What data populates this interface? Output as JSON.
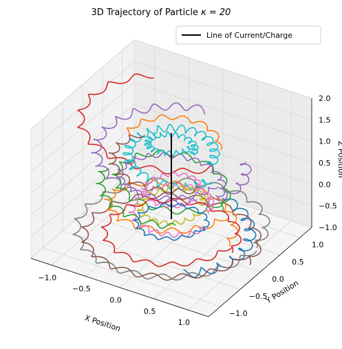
{
  "chart_data": {
    "type": "line",
    "projection": "3d",
    "title_prefix": "3D Trajectory of Particle ",
    "title_kappa": "κ = 20",
    "xlabel": "X Position",
    "ylabel": "Y Position",
    "zlabel": "Z Position",
    "xlim": [
      -1.3,
      1.3
    ],
    "ylim": [
      -1.3,
      1.3
    ],
    "zlim": [
      -1.0,
      2.0
    ],
    "xticks": [
      "−1.0",
      "−0.5",
      "0.0",
      "0.5",
      "1.0"
    ],
    "yticks": [
      "−1.0",
      "−0.5",
      "0.0",
      "0.5",
      "1.0"
    ],
    "zticks": [
      "−1.0",
      "−0.5",
      "0.0",
      "0.5",
      "1.0",
      "1.5",
      "2.0"
    ],
    "grid": true,
    "legend_position": "top-right",
    "legend": [
      {
        "name": "Line of Current/Charge",
        "color": "#000000"
      }
    ],
    "current_line": {
      "x": 0,
      "y": 0,
      "z": [
        -0.45,
        1.55
      ],
      "color": "#000000"
    },
    "trajectories": [
      {
        "color": "#d62728",
        "r": 1.15,
        "zc": 1.7,
        "amp": 0.25,
        "wob": 0.05,
        "freq": 18,
        "start": 2.3,
        "span": 3.4
      },
      {
        "color": "#9467bd",
        "r": 0.95,
        "zc": 1.0,
        "amp": 0.6,
        "wob": 0.06,
        "freq": 22,
        "start": 1.6,
        "span": 5.5
      },
      {
        "color": "#1f77b4",
        "r": 1.0,
        "zc": -0.55,
        "amp": 0.45,
        "wob": 0.07,
        "freq": 26,
        "start": 5.4,
        "span": 2.3
      },
      {
        "color": "#7f7f7f",
        "r": 1.2,
        "zc": -0.5,
        "amp": 0.5,
        "wob": 0.05,
        "freq": 20,
        "start": 0.0,
        "span": 6.28
      },
      {
        "color": "#8c564b",
        "r": 1.1,
        "zc": -0.8,
        "amp": 0.3,
        "wob": 0.05,
        "freq": 18,
        "start": 0.0,
        "span": 6.28
      },
      {
        "color": "#ff7f0e",
        "r": 0.8,
        "zc": -0.3,
        "amp": 0.7,
        "wob": 0.05,
        "freq": 16,
        "start": 0.0,
        "span": 6.28
      },
      {
        "color": "#2ca02c",
        "r": 0.7,
        "zc": 0.2,
        "amp": 0.6,
        "wob": 0.05,
        "freq": 14,
        "start": 0.0,
        "span": 6.28
      },
      {
        "color": "#17becf",
        "r": 0.55,
        "zc": 0.9,
        "amp": 0.5,
        "wob": 0.06,
        "freq": 24,
        "start": 0.0,
        "span": 6.28
      },
      {
        "color": "#e377c2",
        "r": 0.5,
        "zc": -0.2,
        "amp": 0.3,
        "wob": 0.04,
        "freq": 20,
        "start": 0.0,
        "span": 6.28
      },
      {
        "color": "#bcbd22",
        "r": 0.4,
        "zc": 0.0,
        "amp": 0.4,
        "wob": 0.04,
        "freq": 18,
        "start": 0.0,
        "span": 6.28
      },
      {
        "color": "#d62728",
        "r": 0.85,
        "zc": -0.7,
        "amp": 0.25,
        "wob": 0.04,
        "freq": 16,
        "start": 0.0,
        "span": 6.28
      },
      {
        "color": "#9467bd",
        "r": 0.65,
        "zc": 0.5,
        "amp": 0.35,
        "wob": 0.04,
        "freq": 20,
        "start": 0.0,
        "span": 6.28
      },
      {
        "color": "#8c564b",
        "r": 0.75,
        "zc": 0.8,
        "amp": 0.25,
        "wob": 0.05,
        "freq": 18,
        "start": 2.6,
        "span": 3.2
      },
      {
        "color": "#ff7f0e",
        "r": 0.6,
        "zc": 1.2,
        "amp": 0.3,
        "wob": 0.04,
        "freq": 14,
        "start": 0.4,
        "span": 3.0
      },
      {
        "color": "#2ca02c",
        "r": 0.9,
        "zc": 0.4,
        "amp": 0.4,
        "wob": 0.05,
        "freq": 22,
        "start": 3.3,
        "span": 2.0
      },
      {
        "color": "#e377c2",
        "r": 0.35,
        "zc": 0.3,
        "amp": 0.25,
        "wob": 0.03,
        "freq": 16,
        "start": 0.0,
        "span": 6.28
      },
      {
        "color": "#1f77b4",
        "r": 0.45,
        "zc": -0.45,
        "amp": 0.2,
        "wob": 0.03,
        "freq": 14,
        "start": 0.0,
        "span": 6.28
      },
      {
        "color": "#17becf",
        "r": 0.3,
        "zc": 1.3,
        "amp": 0.2,
        "wob": 0.04,
        "freq": 20,
        "start": 0.0,
        "span": 6.28
      }
    ]
  }
}
